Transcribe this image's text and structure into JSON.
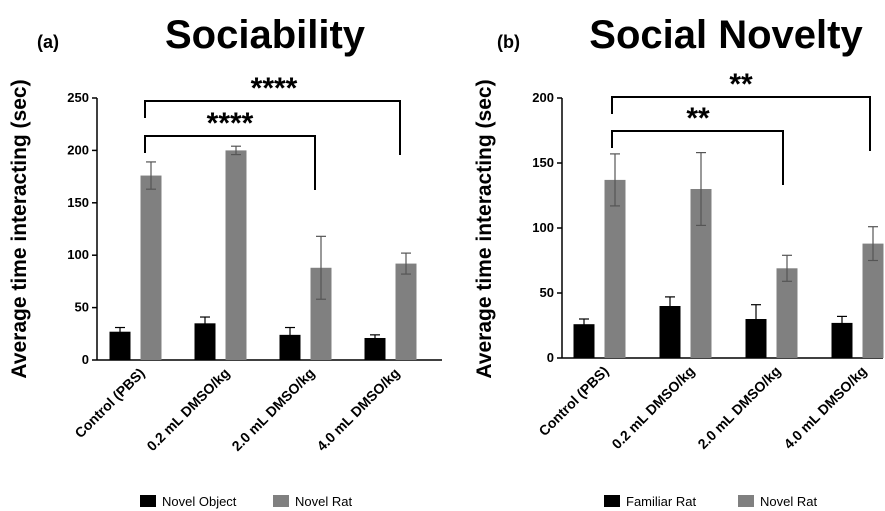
{
  "chart_data": [
    {
      "type": "bar",
      "panel_label": "(a)",
      "title": "Sociability",
      "ylabel": "Average time interacting (sec)",
      "ylim": [
        0,
        250
      ],
      "yticks": [
        0,
        50,
        100,
        150,
        200,
        250
      ],
      "categories": [
        "Control (PBS)",
        "0.2 mL DMSO/kg",
        "2.0 mL DMSO/kg",
        "4.0 mL DMSO/kg"
      ],
      "series": [
        {
          "name": "Novel Object",
          "color": "#000000",
          "values": [
            27,
            35,
            24,
            21
          ],
          "errors": [
            4,
            6,
            7,
            3
          ]
        },
        {
          "name": "Novel Rat",
          "color": "#808080",
          "values": [
            176,
            200,
            88,
            92
          ],
          "errors": [
            13,
            4,
            30,
            10
          ]
        }
      ],
      "significance": [
        {
          "from": "Control (PBS)",
          "to": "2.0 mL DMSO/kg",
          "label": "****"
        },
        {
          "from": "Control (PBS)",
          "to": "4.0 mL DMSO/kg",
          "label": "****"
        }
      ],
      "legend_position": "bottom"
    },
    {
      "type": "bar",
      "panel_label": "(b)",
      "title": "Social Novelty",
      "ylabel": "Average time interacting (sec)",
      "ylim": [
        0,
        200
      ],
      "yticks": [
        0,
        50,
        100,
        150,
        200
      ],
      "categories": [
        "Control (PBS)",
        "0.2 mL DMSO/kg",
        "2.0 mL DMSO/kg",
        "4.0 mL DMSO/kg"
      ],
      "series": [
        {
          "name": "Familiar Rat",
          "color": "#000000",
          "values": [
            26,
            40,
            30,
            27
          ],
          "errors": [
            4,
            7,
            11,
            5
          ]
        },
        {
          "name": "Novel Rat",
          "color": "#808080",
          "values": [
            137,
            130,
            69,
            88
          ],
          "errors": [
            20,
            28,
            10,
            13
          ]
        }
      ],
      "significance": [
        {
          "from": "Control (PBS)",
          "to": "2.0 mL DMSO/kg",
          "label": "**"
        },
        {
          "from": "Control (PBS)",
          "to": "4.0 mL DMSO/kg",
          "label": "**"
        }
      ],
      "legend_position": "bottom"
    }
  ]
}
